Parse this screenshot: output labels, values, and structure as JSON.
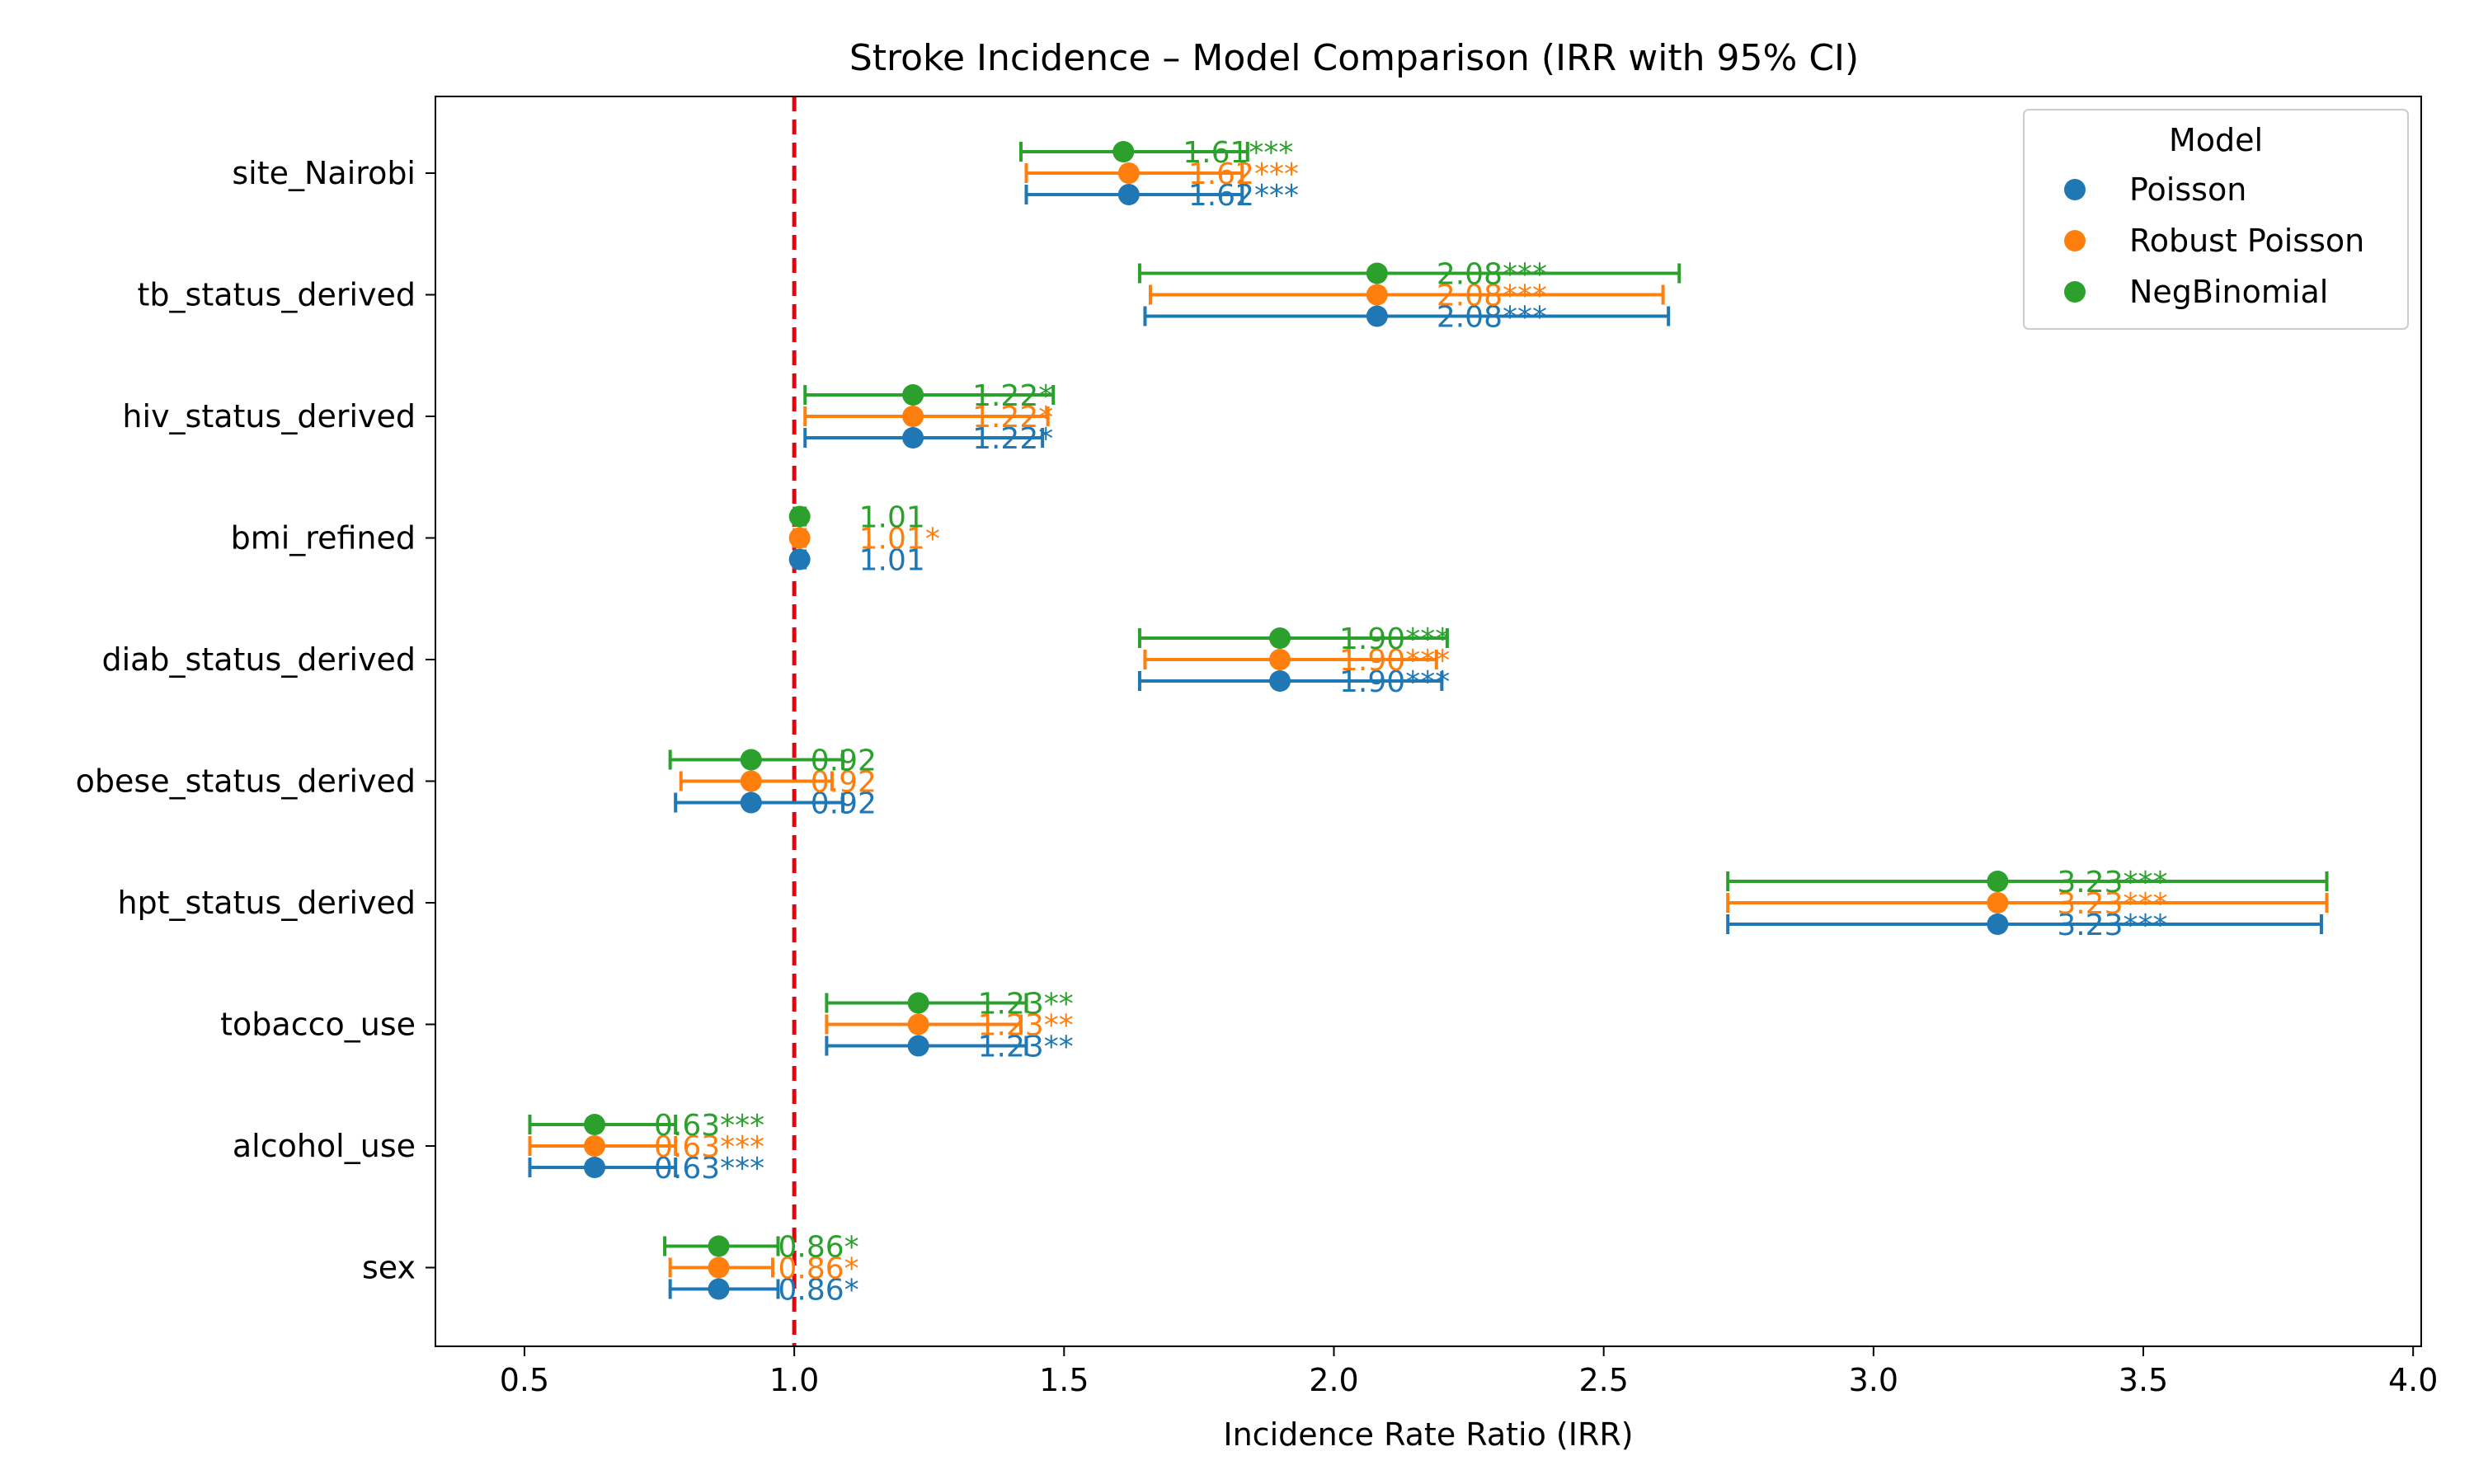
{
  "chart_data": {
    "type": "scatter",
    "subtype": "forest-plot",
    "title": "Stroke Incidence – Model Comparison (IRR with 95% CI)",
    "xlabel": "Incidence Rate Ratio (IRR)",
    "ylabel": "",
    "xlim": [
      0.335,
      4.015
    ],
    "xticks": [
      0.5,
      1.0,
      1.5,
      2.0,
      2.5,
      3.0,
      3.5,
      4.0
    ],
    "xtick_labels": [
      "0.5",
      "1.0",
      "1.5",
      "2.0",
      "2.5",
      "3.0",
      "3.5",
      "4.0"
    ],
    "reference_line": {
      "x": 1.0,
      "color": "#e8000b",
      "style": "dashed"
    },
    "grid": false,
    "legend": {
      "title": "Model",
      "placement": "top-right"
    },
    "categories": [
      "site_Nairobi",
      "tb_status_derived",
      "hiv_status_derived",
      "bmi_refined",
      "diab_status_derived",
      "obese_status_derived",
      "hpt_status_derived",
      "tobacco_use",
      "alcohol_use",
      "sex"
    ],
    "series": [
      {
        "name": "Poisson",
        "color": "#1f77b4",
        "irr": [
          1.62,
          2.08,
          1.22,
          1.01,
          1.9,
          0.92,
          3.23,
          1.23,
          0.63,
          0.86
        ],
        "ci_low": [
          1.43,
          1.65,
          1.02,
          1.0,
          1.64,
          0.78,
          2.73,
          1.06,
          0.51,
          0.77
        ],
        "ci_high": [
          1.83,
          2.62,
          1.46,
          1.02,
          2.2,
          1.09,
          3.83,
          1.43,
          0.78,
          0.97
        ],
        "labels": [
          "1.62***",
          "2.08***",
          "1.22*",
          "1.01",
          "1.90***",
          "0.92",
          "3.23***",
          "1.23**",
          "0.63***",
          "0.86*"
        ]
      },
      {
        "name": "Robust Poisson",
        "color": "#ff7f0e",
        "irr": [
          1.62,
          2.08,
          1.22,
          1.01,
          1.9,
          0.92,
          3.23,
          1.23,
          0.63,
          0.86
        ],
        "ci_low": [
          1.43,
          1.66,
          1.02,
          1.0,
          1.65,
          0.79,
          2.73,
          1.06,
          0.51,
          0.77
        ],
        "ci_high": [
          1.83,
          2.61,
          1.47,
          1.02,
          2.19,
          1.07,
          3.84,
          1.42,
          0.78,
          0.96
        ],
        "labels": [
          "1.62***",
          "2.08***",
          "1.22*",
          "1.01*",
          "1.90***",
          "0.92",
          "3.23***",
          "1.23**",
          "0.63***",
          "0.86*"
        ]
      },
      {
        "name": "NegBinomial",
        "color": "#2ca02c",
        "irr": [
          1.61,
          2.08,
          1.22,
          1.01,
          1.9,
          0.92,
          3.23,
          1.23,
          0.63,
          0.86
        ],
        "ci_low": [
          1.42,
          1.64,
          1.02,
          1.0,
          1.64,
          0.77,
          2.73,
          1.06,
          0.51,
          0.76
        ],
        "ci_high": [
          1.84,
          2.64,
          1.48,
          1.02,
          2.21,
          1.09,
          3.84,
          1.43,
          0.78,
          0.97
        ],
        "labels": [
          "1.61***",
          "2.08***",
          "1.22*",
          "1.01",
          "1.90***",
          "0.92",
          "3.23***",
          "1.23**",
          "0.63***",
          "0.86*"
        ]
      }
    ]
  }
}
